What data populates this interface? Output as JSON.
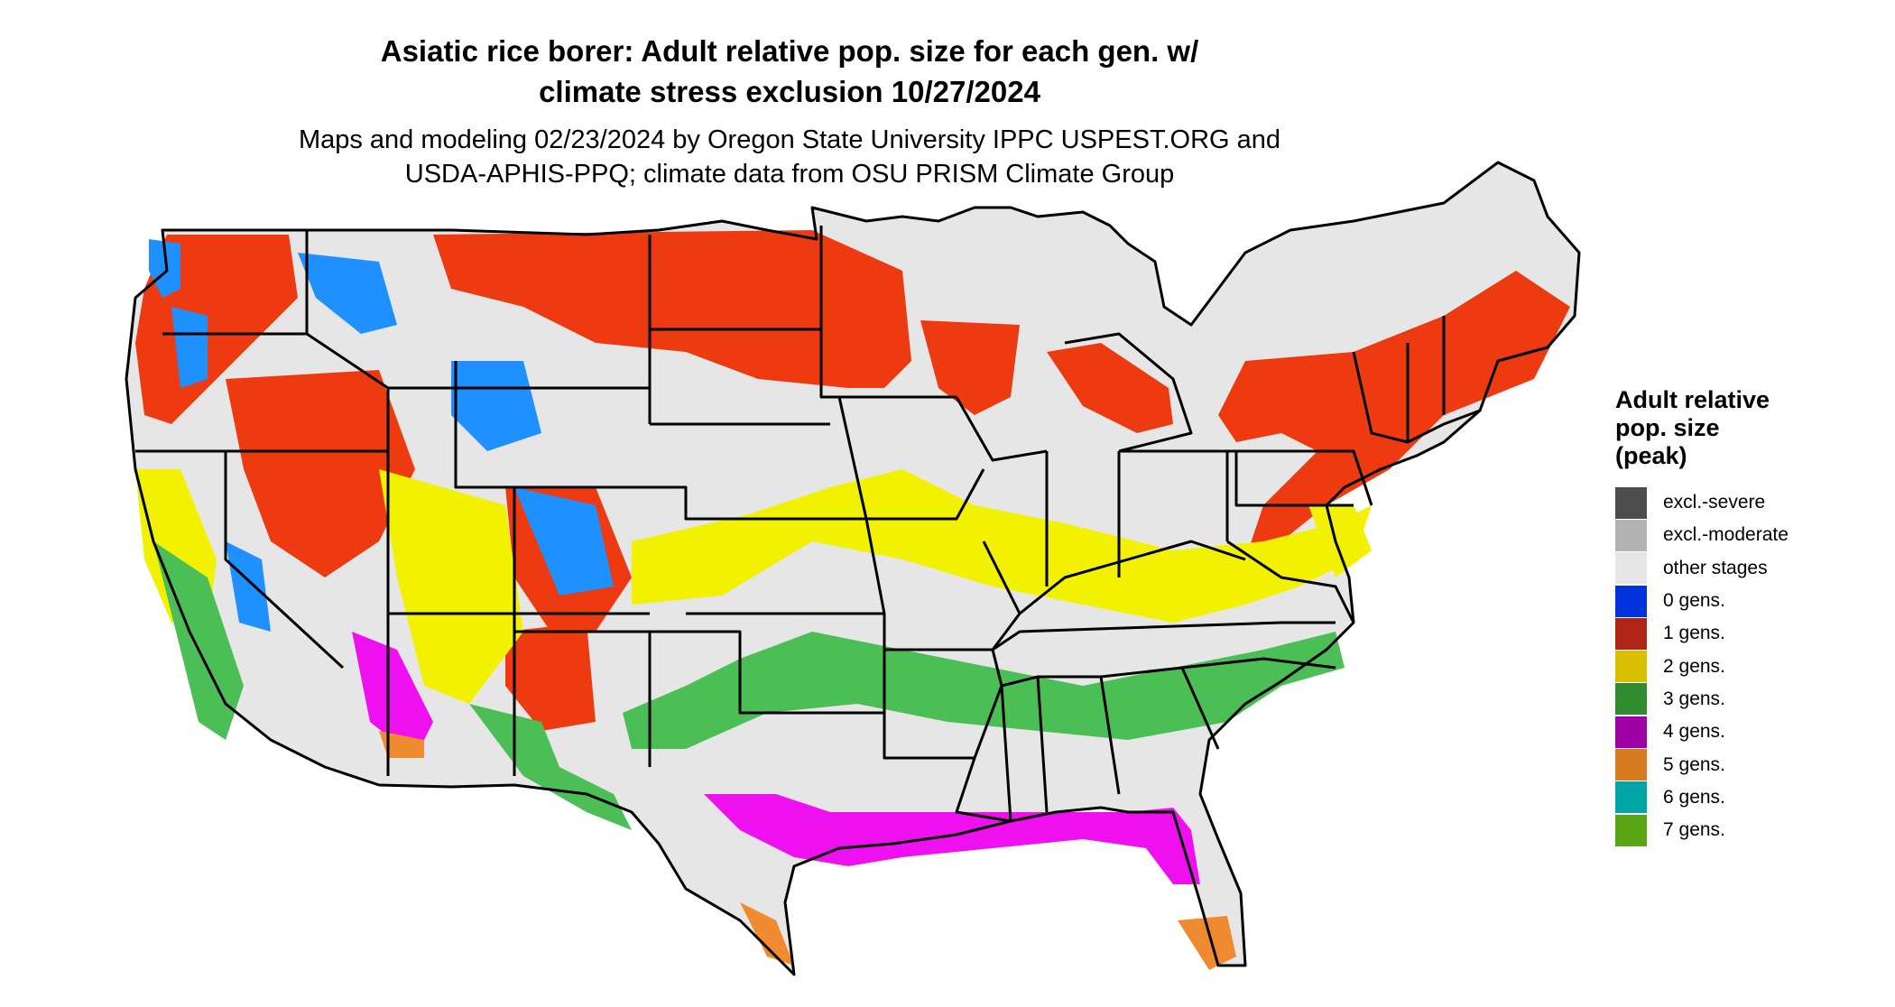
{
  "title_line1": "Asiatic rice borer: Adult relative pop. size for each gen. w/",
  "title_line2": "climate stress exclusion 10/27/2024",
  "subtitle_line1": "Maps and modeling 02/23/2024 by Oregon State University IPPC USPEST.ORG and",
  "subtitle_line2": "USDA-APHIS-PPQ; climate data from OSU PRISM Climate Group",
  "legend": {
    "title_line1": "Adult relative",
    "title_line2": "pop. size",
    "title_line3": "(peak)",
    "items": [
      {
        "label": "excl.-severe",
        "color": "#4d4d4d"
      },
      {
        "label": "excl.-moderate",
        "color": "#b3b3b3"
      },
      {
        "label": "other stages",
        "color": "#e5e5e5"
      },
      {
        "label": "0 gens.",
        "color": "#0033dd"
      },
      {
        "label": "1 gens.",
        "color": "#b22418"
      },
      {
        "label": "2 gens.",
        "color": "#d8c000"
      },
      {
        "label": "3 gens.",
        "color": "#2e8b2e"
      },
      {
        "label": "4 gens.",
        "color": "#a000a8"
      },
      {
        "label": "5 gens.",
        "color": "#d97a20"
      },
      {
        "label": "6 gens.",
        "color": "#00a5a5"
      },
      {
        "label": "7 gens.",
        "color": "#5aa514"
      }
    ]
  },
  "map_colors": {
    "land": "#e6e6e6",
    "one_gen": "#ee3a10",
    "zero_gen": "#1e90ff",
    "two_gen": "#f2f200",
    "three_gen": "#4bbf55",
    "four_gen": "#ee10ee",
    "five_gen": "#f08a30",
    "borders": "#000000"
  }
}
